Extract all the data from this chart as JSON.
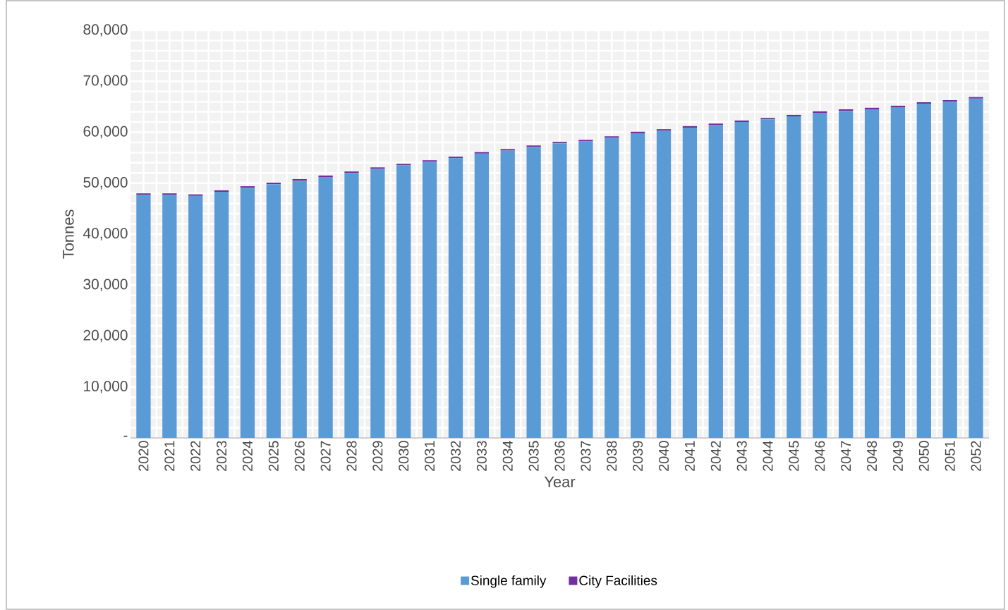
{
  "chart_data": {
    "type": "bar",
    "stacked": true,
    "xlabel": "Year",
    "ylabel": "Tonnes",
    "categories": [
      "2020",
      "2021",
      "2022",
      "2023",
      "2024",
      "2025",
      "2026",
      "2027",
      "2028",
      "2029",
      "2030",
      "2031",
      "2032",
      "2033",
      "2034",
      "2035",
      "2036",
      "2037",
      "2038",
      "2039",
      "2040",
      "2041",
      "2042",
      "2043",
      "2044",
      "2045",
      "2046",
      "2047",
      "2048",
      "2049",
      "2050",
      "2051",
      "2052"
    ],
    "series": [
      {
        "name": "Single family",
        "color": "#5b9bd5",
        "values": [
          47700,
          47700,
          47500,
          48300,
          49100,
          49800,
          50500,
          51200,
          52000,
          52800,
          53500,
          54200,
          54900,
          55800,
          56400,
          57100,
          57800,
          58200,
          58900,
          59800,
          60300,
          60900,
          61400,
          62000,
          62500,
          63100,
          63800,
          64200,
          64500,
          64900,
          65600,
          66000,
          66600
        ]
      },
      {
        "name": "City Facilities",
        "color": "#7030a0",
        "values": [
          300,
          300,
          300,
          300,
          300,
          300,
          300,
          300,
          300,
          300,
          300,
          300,
          300,
          300,
          300,
          300,
          300,
          300,
          300,
          300,
          300,
          300,
          300,
          300,
          300,
          300,
          300,
          300,
          300,
          300,
          300,
          300,
          300
        ]
      }
    ],
    "ylim": [
      0,
      80000
    ],
    "yticks": [
      {
        "value": 0,
        "label": "-"
      },
      {
        "value": 10000,
        "label": "10,000"
      },
      {
        "value": 20000,
        "label": "20,000"
      },
      {
        "value": 30000,
        "label": "30,000"
      },
      {
        "value": 40000,
        "label": "40,000"
      },
      {
        "value": 50000,
        "label": "50,000"
      },
      {
        "value": 60000,
        "label": "60,000"
      },
      {
        "value": 70000,
        "label": "70,000"
      },
      {
        "value": 80000,
        "label": "80,000"
      }
    ],
    "grid": true,
    "legend": "bottom"
  }
}
